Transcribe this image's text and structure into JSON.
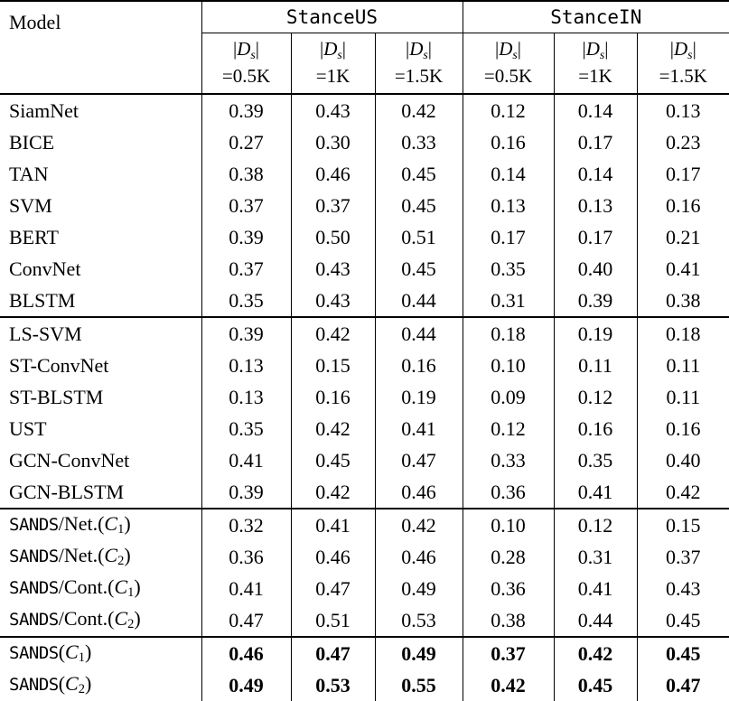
{
  "table": {
    "header": {
      "model_label": "Model",
      "groups": [
        "StanceUS",
        "StanceIN"
      ],
      "subcol_line1": [
        {
          "t": "|",
          "s": "rm"
        },
        {
          "t": "D",
          "s": "cal"
        },
        {
          "t": "s",
          "s": "isub"
        },
        {
          "t": "|",
          "s": "rm"
        }
      ],
      "subcol_line2": [
        "=0.5K",
        "=1K",
        "=1.5K",
        "=0.5K",
        "=1K",
        "=1.5K"
      ]
    },
    "sections": [
      {
        "bold_values": false,
        "rows": [
          {
            "model": [
              {
                "t": "SiamNet",
                "s": "rm"
              }
            ],
            "values": [
              "0.39",
              "0.43",
              "0.42",
              "0.12",
              "0.14",
              "0.13"
            ]
          },
          {
            "model": [
              {
                "t": "BICE",
                "s": "rm"
              }
            ],
            "values": [
              "0.27",
              "0.30",
              "0.33",
              "0.16",
              "0.17",
              "0.23"
            ]
          },
          {
            "model": [
              {
                "t": "TAN",
                "s": "rm"
              }
            ],
            "values": [
              "0.38",
              "0.46",
              "0.45",
              "0.14",
              "0.14",
              "0.17"
            ]
          },
          {
            "model": [
              {
                "t": "SVM",
                "s": "rm"
              }
            ],
            "values": [
              "0.37",
              "0.37",
              "0.45",
              "0.13",
              "0.13",
              "0.16"
            ]
          },
          {
            "model": [
              {
                "t": "BERT",
                "s": "rm"
              }
            ],
            "values": [
              "0.39",
              "0.50",
              "0.51",
              "0.17",
              "0.17",
              "0.21"
            ]
          },
          {
            "model": [
              {
                "t": "ConvNet",
                "s": "rm"
              }
            ],
            "values": [
              "0.37",
              "0.43",
              "0.45",
              "0.35",
              "0.40",
              "0.41"
            ]
          },
          {
            "model": [
              {
                "t": "BLSTM",
                "s": "rm"
              }
            ],
            "values": [
              "0.35",
              "0.43",
              "0.44",
              "0.31",
              "0.39",
              "0.38"
            ]
          }
        ]
      },
      {
        "bold_values": false,
        "rows": [
          {
            "model": [
              {
                "t": "LS-SVM",
                "s": "rm"
              }
            ],
            "values": [
              "0.39",
              "0.42",
              "0.44",
              "0.18",
              "0.19",
              "0.18"
            ]
          },
          {
            "model": [
              {
                "t": "ST-ConvNet",
                "s": "rm"
              }
            ],
            "values": [
              "0.13",
              "0.15",
              "0.16",
              "0.10",
              "0.11",
              "0.11"
            ]
          },
          {
            "model": [
              {
                "t": "ST-BLSTM",
                "s": "rm"
              }
            ],
            "values": [
              "0.13",
              "0.16",
              "0.19",
              "0.09",
              "0.12",
              "0.11"
            ]
          },
          {
            "model": [
              {
                "t": "UST",
                "s": "rm"
              }
            ],
            "values": [
              "0.35",
              "0.42",
              "0.41",
              "0.12",
              "0.16",
              "0.16"
            ]
          },
          {
            "model": [
              {
                "t": "GCN-ConvNet",
                "s": "rm"
              }
            ],
            "values": [
              "0.41",
              "0.45",
              "0.47",
              "0.33",
              "0.35",
              "0.40"
            ]
          },
          {
            "model": [
              {
                "t": "GCN-BLSTM",
                "s": "rm"
              }
            ],
            "values": [
              "0.39",
              "0.42",
              "0.46",
              "0.36",
              "0.41",
              "0.42"
            ]
          }
        ]
      },
      {
        "bold_values": false,
        "rows": [
          {
            "model": [
              {
                "t": "SANDS",
                "s": "mono"
              },
              {
                "t": "/Net.(",
                "s": "rm"
              },
              {
                "t": "C",
                "s": "cal"
              },
              {
                "t": "1",
                "s": "sub"
              },
              {
                "t": ")",
                "s": "rm"
              }
            ],
            "values": [
              "0.32",
              "0.41",
              "0.42",
              "0.10",
              "0.12",
              "0.15"
            ]
          },
          {
            "model": [
              {
                "t": "SANDS",
                "s": "mono"
              },
              {
                "t": "/Net.(",
                "s": "rm"
              },
              {
                "t": "C",
                "s": "cal"
              },
              {
                "t": "2",
                "s": "sub"
              },
              {
                "t": ")",
                "s": "rm"
              }
            ],
            "values": [
              "0.36",
              "0.46",
              "0.46",
              "0.28",
              "0.31",
              "0.37"
            ]
          },
          {
            "model": [
              {
                "t": "SANDS",
                "s": "mono"
              },
              {
                "t": "/Cont.(",
                "s": "rm"
              },
              {
                "t": "C",
                "s": "cal"
              },
              {
                "t": "1",
                "s": "sub"
              },
              {
                "t": ")",
                "s": "rm"
              }
            ],
            "values": [
              "0.41",
              "0.47",
              "0.49",
              "0.36",
              "0.41",
              "0.43"
            ]
          },
          {
            "model": [
              {
                "t": "SANDS",
                "s": "mono"
              },
              {
                "t": "/Cont.(",
                "s": "rm"
              },
              {
                "t": "C",
                "s": "cal"
              },
              {
                "t": "2",
                "s": "sub"
              },
              {
                "t": ")",
                "s": "rm"
              }
            ],
            "values": [
              "0.47",
              "0.51",
              "0.53",
              "0.38",
              "0.44",
              "0.45"
            ]
          }
        ]
      },
      {
        "bold_values": true,
        "rows": [
          {
            "model": [
              {
                "t": "SANDS",
                "s": "mono"
              },
              {
                "t": "(",
                "s": "rm"
              },
              {
                "t": "C",
                "s": "cal"
              },
              {
                "t": "1",
                "s": "sub"
              },
              {
                "t": ")",
                "s": "rm"
              }
            ],
            "values": [
              "0.46",
              "0.47",
              "0.49",
              "0.37",
              "0.42",
              "0.45"
            ]
          },
          {
            "model": [
              {
                "t": "SANDS",
                "s": "mono"
              },
              {
                "t": "(",
                "s": "rm"
              },
              {
                "t": "C",
                "s": "cal"
              },
              {
                "t": "2",
                "s": "sub"
              },
              {
                "t": ")",
                "s": "rm"
              }
            ],
            "values": [
              "0.49",
              "0.53",
              "0.55",
              "0.42",
              "0.45",
              "0.47"
            ]
          }
        ]
      }
    ]
  }
}
